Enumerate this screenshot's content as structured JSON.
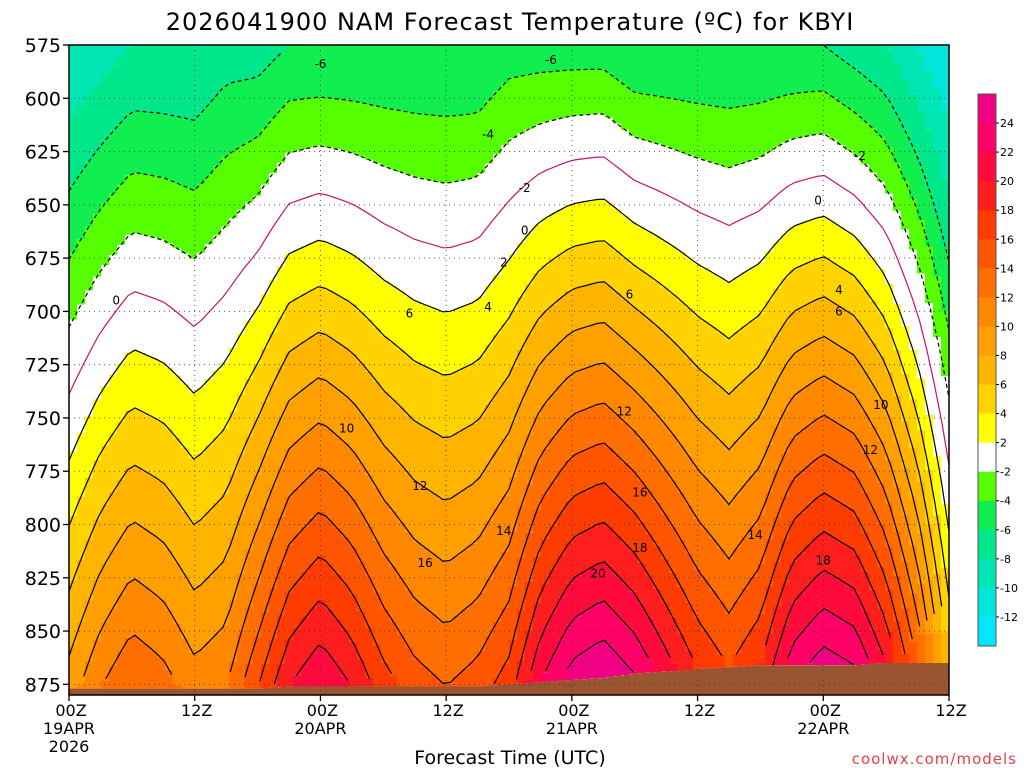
{
  "chart_data": {
    "type": "heatmap",
    "title": "2026041900 NAM Forecast Temperature (ºC) for KBYI",
    "xlabel": "Forecast Time (UTC)",
    "ylabel": "",
    "y_ticks": [
      "575",
      "600",
      "625",
      "650",
      "675",
      "700",
      "725",
      "750",
      "775",
      "800",
      "825",
      "850",
      "875"
    ],
    "ylim": [
      575,
      880
    ],
    "x_ticks": [
      {
        "hour": 0,
        "line1": "00Z",
        "line2": "19APR",
        "line3": "2026"
      },
      {
        "hour": 12,
        "line1": "12Z",
        "line2": "",
        "line3": ""
      },
      {
        "hour": 24,
        "line1": "00Z",
        "line2": "20APR",
        "line3": ""
      },
      {
        "hour": 36,
        "line1": "12Z",
        "line2": "",
        "line3": ""
      },
      {
        "hour": 48,
        "line1": "00Z",
        "line2": "21APR",
        "line3": ""
      },
      {
        "hour": 60,
        "line1": "12Z",
        "line2": "",
        "line3": ""
      },
      {
        "hour": 72,
        "line1": "00Z",
        "line2": "22APR",
        "line3": ""
      },
      {
        "hour": 84,
        "line1": "12Z",
        "line2": "",
        "line3": ""
      }
    ],
    "xlim": [
      0,
      84
    ],
    "colorbar": {
      "labels": [
        "24",
        "22",
        "20",
        "18",
        "16",
        "14",
        "12",
        "10",
        "8",
        "6",
        "4",
        "2",
        "-2",
        "-4",
        "-6",
        "-8",
        "-10",
        "-12"
      ],
      "colors": [
        "#f00082",
        "#ff0066",
        "#ff0a3c",
        "#ff1e1e",
        "#ff3c00",
        "#ff5500",
        "#ff6e00",
        "#ff8800",
        "#ffa000",
        "#ffb400",
        "#ffd200",
        "#ffff00",
        "#ffffff",
        "#55ff00",
        "#10ee50",
        "#00e68a",
        "#00e6b4",
        "#00e6dc",
        "#00e6ff"
      ]
    },
    "contour_levels": [
      -6,
      -4,
      -2,
      0,
      2,
      4,
      6,
      8,
      10,
      12,
      14,
      16,
      18,
      20,
      22,
      24
    ],
    "contour_labels": [
      {
        "text": "-6",
        "hour": 24,
        "p": 584
      },
      {
        "text": "-6",
        "hour": 46,
        "p": 582
      },
      {
        "text": "-4",
        "hour": 40,
        "p": 617
      },
      {
        "text": "-2",
        "hour": 43.5,
        "p": 642
      },
      {
        "text": "-2",
        "hour": 75.5,
        "p": 627
      },
      {
        "text": "0",
        "hour": 4.5,
        "p": 695
      },
      {
        "text": "0",
        "hour": 43.5,
        "p": 662
      },
      {
        "text": "0",
        "hour": 71.5,
        "p": 648
      },
      {
        "text": "2",
        "hour": 41.5,
        "p": 677
      },
      {
        "text": "4",
        "hour": 40,
        "p": 698
      },
      {
        "text": "4",
        "hour": 73.5,
        "p": 690
      },
      {
        "text": "6",
        "hour": 32.5,
        "p": 701
      },
      {
        "text": "6",
        "hour": 53.5,
        "p": 692
      },
      {
        "text": "6",
        "hour": 73.5,
        "p": 700
      },
      {
        "text": "10",
        "hour": 26.5,
        "p": 755
      },
      {
        "text": "10",
        "hour": 77.5,
        "p": 744
      },
      {
        "text": "12",
        "hour": 33.5,
        "p": 782
      },
      {
        "text": "12",
        "hour": 53,
        "p": 747
      },
      {
        "text": "12",
        "hour": 76.5,
        "p": 765
      },
      {
        "text": "14",
        "hour": 41.5,
        "p": 803
      },
      {
        "text": "14",
        "hour": 65.5,
        "p": 805
      },
      {
        "text": "16",
        "hour": 34,
        "p": 818
      },
      {
        "text": "16",
        "hour": 54.5,
        "p": 785
      },
      {
        "text": "18",
        "hour": 54.5,
        "p": 811
      },
      {
        "text": "18",
        "hour": 72,
        "p": 817
      },
      {
        "text": "20",
        "hour": 50.5,
        "p": 823
      }
    ],
    "profiles": [
      {
        "hour": 0,
        "t575": -10,
        "t_sfc": 9,
        "sfc_p": 877
      },
      {
        "hour": 3,
        "t575": -9,
        "t_sfc": 12,
        "sfc_p": 877
      },
      {
        "hour": 6,
        "t575": -8,
        "t_sfc": 14,
        "sfc_p": 877
      },
      {
        "hour": 9,
        "t575": -8,
        "t_sfc": 13,
        "sfc_p": 877
      },
      {
        "hour": 12,
        "t575": -8,
        "t_sfc": 11,
        "sfc_p": 877
      },
      {
        "hour": 15,
        "t575": -7,
        "t_sfc": 12,
        "sfc_p": 877
      },
      {
        "hour": 18,
        "t575": -7,
        "t_sfc": 16,
        "sfc_p": 877
      },
      {
        "hour": 21,
        "t575": -6,
        "t_sfc": 20,
        "sfc_p": 876
      },
      {
        "hour": 24,
        "t575": -6,
        "t_sfc": 22,
        "sfc_p": 876
      },
      {
        "hour": 27,
        "t575": -6,
        "t_sfc": 20,
        "sfc_p": 876
      },
      {
        "hour": 30,
        "t575": -6,
        "t_sfc": 17,
        "sfc_p": 876
      },
      {
        "hour": 33,
        "t575": -6,
        "t_sfc": 15,
        "sfc_p": 876
      },
      {
        "hour": 36,
        "t575": -6,
        "t_sfc": 14,
        "sfc_p": 876
      },
      {
        "hour": 39,
        "t575": -6,
        "t_sfc": 15,
        "sfc_p": 876
      },
      {
        "hour": 42,
        "t575": -5,
        "t_sfc": 17,
        "sfc_p": 875
      },
      {
        "hour": 45,
        "t575": -5,
        "t_sfc": 22,
        "sfc_p": 874
      },
      {
        "hour": 48,
        "t575": -5,
        "t_sfc": 25,
        "sfc_p": 873
      },
      {
        "hour": 51,
        "t575": -5,
        "t_sfc": 26,
        "sfc_p": 872
      },
      {
        "hour": 54,
        "t575": -6,
        "t_sfc": 24,
        "sfc_p": 870
      },
      {
        "hour": 57,
        "t575": -6,
        "t_sfc": 21,
        "sfc_p": 869
      },
      {
        "hour": 60,
        "t575": -6,
        "t_sfc": 18,
        "sfc_p": 868
      },
      {
        "hour": 63,
        "t575": -6,
        "t_sfc": 16,
        "sfc_p": 867
      },
      {
        "hour": 66,
        "t575": -6,
        "t_sfc": 18,
        "sfc_p": 866
      },
      {
        "hour": 69,
        "t575": -6,
        "t_sfc": 23,
        "sfc_p": 866
      },
      {
        "hour": 72,
        "t575": -6,
        "t_sfc": 25,
        "sfc_p": 866
      },
      {
        "hour": 75,
        "t575": -7,
        "t_sfc": 24,
        "sfc_p": 866
      },
      {
        "hour": 78,
        "t575": -8,
        "t_sfc": 20,
        "sfc_p": 865
      },
      {
        "hour": 81,
        "t575": -10,
        "t_sfc": 14,
        "sfc_p": 865
      },
      {
        "hour": 84,
        "t575": -12,
        "t_sfc": 6,
        "sfc_p": 865
      }
    ],
    "terrain_color": "#9a5530"
  },
  "credit": "coolwx.com/models"
}
